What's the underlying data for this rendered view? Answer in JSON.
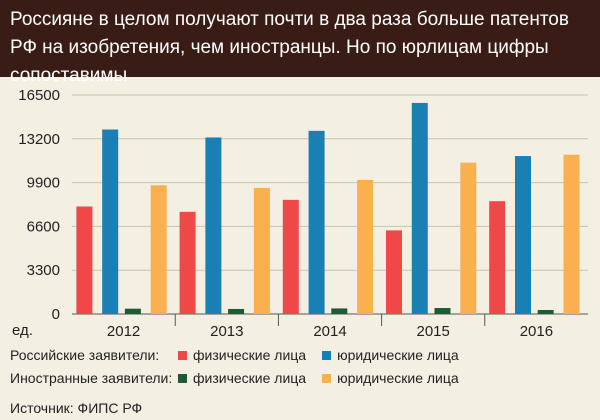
{
  "title": "Россияне в целом получают почти в два раза больше патентов РФ на изобретения, чем иностранцы. Но по юрлицам цифры сопоставимы",
  "legend": {
    "russian_label": "Российские заявители:",
    "foreign_label": "Иностранные заявители:",
    "individuals": "физические лица",
    "legal": "юридические лица"
  },
  "source": "Источник: ФИПС РФ",
  "colors": {
    "russian_individuals": "#f04848",
    "russian_legal": "#1a7fb3",
    "foreign_individuals": "#1e5a32",
    "foreign_legal": "#fbb04f"
  },
  "chart_data": {
    "type": "bar",
    "categories": [
      "2012",
      "2013",
      "2014",
      "2015",
      "2016"
    ],
    "series": [
      {
        "key": "russian_individuals",
        "values": [
          8100,
          7700,
          8600,
          6300,
          8500
        ]
      },
      {
        "key": "russian_legal",
        "values": [
          13900,
          13300,
          13800,
          15900,
          11900
        ]
      },
      {
        "key": "foreign_individuals",
        "values": [
          400,
          380,
          420,
          450,
          300
        ]
      },
      {
        "key": "foreign_legal",
        "values": [
          9700,
          9500,
          10100,
          11400,
          12000
        ]
      }
    ],
    "yticks": [
      "0",
      "3300",
      "6600",
      "9900",
      "13200",
      "16500"
    ],
    "y_unit_label": "ед.",
    "ylim": [
      0,
      16500
    ],
    "grid": true
  }
}
